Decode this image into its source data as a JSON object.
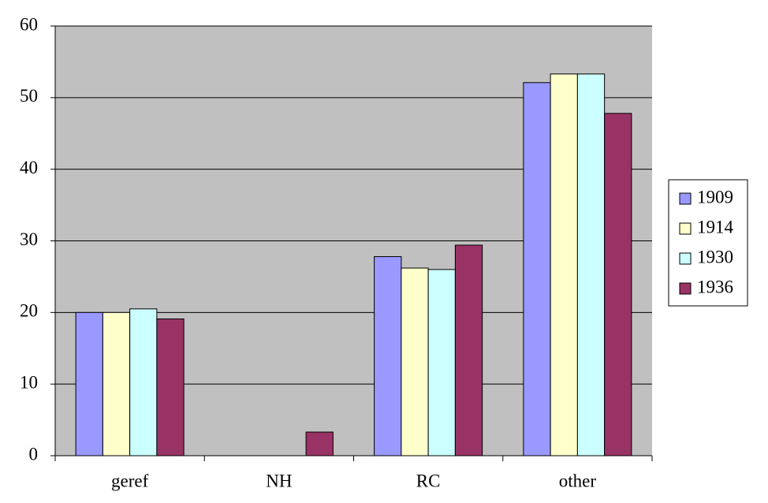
{
  "chart_data": {
    "type": "bar",
    "categories": [
      "geref",
      "NH",
      "RC",
      "other"
    ],
    "series": [
      {
        "name": "1909",
        "color": "#9999ff",
        "values": [
          20,
          0,
          27.8,
          52.1
        ]
      },
      {
        "name": "1914",
        "color": "#ffffcc",
        "values": [
          20,
          0,
          26.2,
          53.3
        ]
      },
      {
        "name": "1930",
        "color": "#ccffff",
        "values": [
          20.5,
          0,
          26,
          53.3
        ]
      },
      {
        "name": "1936",
        "color": "#993366",
        "values": [
          19.1,
          3.3,
          29.4,
          47.8
        ]
      }
    ],
    "ylim": [
      0,
      60
    ],
    "yticks": [
      0,
      10,
      20,
      30,
      40,
      50,
      60
    ],
    "grid": true,
    "legend": "right"
  }
}
